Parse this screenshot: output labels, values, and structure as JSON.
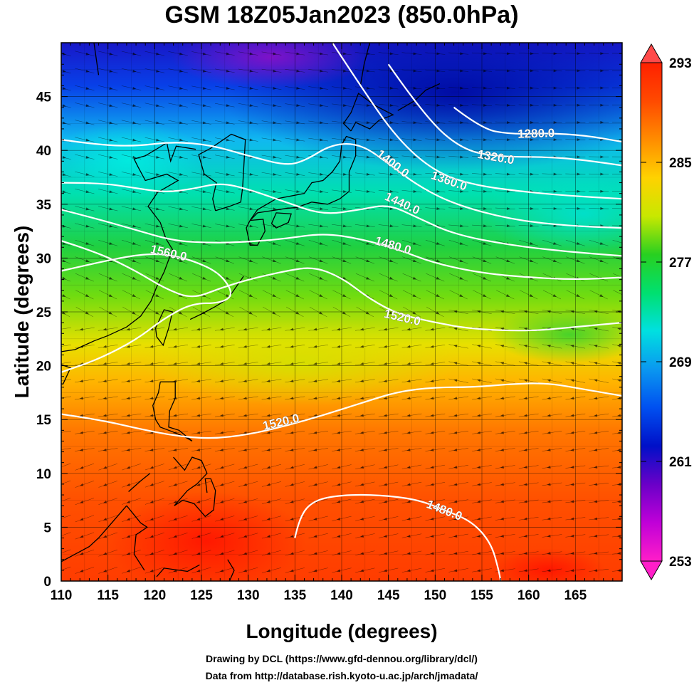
{
  "title": "GSM 18Z05Jan2023 (850.0hPa)",
  "xlabel": "Longitude (degrees)",
  "ylabel": "Latitude  (degrees)",
  "x_ticks": [
    "110",
    "115",
    "120",
    "125",
    "130",
    "135",
    "140",
    "145",
    "150",
    "155",
    "160",
    "165"
  ],
  "y_ticks": [
    "0",
    "5",
    "10",
    "15",
    "20",
    "25",
    "30",
    "35",
    "40",
    "45"
  ],
  "colorbar": {
    "ticks": [
      "253",
      "261",
      "269",
      "277",
      "285",
      "293"
    ],
    "colors": [
      "#ff1ec8",
      "#c000d8",
      "#6a00c8",
      "#0010c8",
      "#0050f0",
      "#0a98f0",
      "#00e0e0",
      "#00e070",
      "#28d020",
      "#c8e800",
      "#ffd200",
      "#ff8c00",
      "#ff4a00",
      "#ff2000"
    ]
  },
  "contour_labels": [
    "1280.0",
    "1320.0",
    "1360.0",
    "1400.0",
    "1440.0",
    "1480.0",
    "1520.0",
    "1560.0",
    "1520.0",
    "1480.0"
  ],
  "credits": {
    "line1": "Drawing by DCL (https://www.gfd-dennou.org/library/dcl/)",
    "line2": "Data from http://database.rish.kyoto-u.ac.jp/arch/jmadata/"
  },
  "chart_data": {
    "type": "heatmap",
    "title": "GSM 18Z05Jan2023 (850.0hPa)",
    "xlabel": "Longitude (degrees)",
    "ylabel": "Latitude  (degrees)",
    "xlim": [
      110,
      170
    ],
    "ylim": [
      0,
      50
    ],
    "x_ticks": [
      110,
      115,
      120,
      125,
      130,
      135,
      140,
      145,
      150,
      155,
      160,
      165
    ],
    "y_ticks": [
      0,
      5,
      10,
      15,
      20,
      25,
      30,
      35,
      40,
      45
    ],
    "colorbar_range": [
      253,
      293
    ],
    "colorbar_ticks": [
      253,
      261,
      269,
      277,
      285,
      293
    ],
    "grid": true,
    "contours": [
      {
        "level": "1280.0",
        "label_lon": 160.8,
        "label_lat": 41.6,
        "points": [
          [
            152,
            44
          ],
          [
            155,
            42
          ],
          [
            158,
            41.5
          ],
          [
            162,
            41.6
          ],
          [
            166,
            41.4
          ],
          [
            170,
            40.8
          ]
        ]
      },
      {
        "level": "1320.0",
        "label_lon": 156.5,
        "label_lat": 39.4,
        "points": [
          [
            145,
            48
          ],
          [
            149,
            43
          ],
          [
            153,
            40
          ],
          [
            157,
            39.4
          ],
          [
            162,
            39.4
          ],
          [
            166,
            39.1
          ],
          [
            170,
            38.6
          ]
        ]
      },
      {
        "level": "1360.0",
        "label_lon": 151.5,
        "label_lat": 37.2,
        "points": [
          [
            139,
            50
          ],
          [
            142,
            46
          ],
          [
            146,
            41
          ],
          [
            150,
            38
          ],
          [
            154,
            36.8
          ],
          [
            159,
            36.2
          ],
          [
            164,
            35.8
          ],
          [
            170,
            35.5
          ]
        ]
      },
      {
        "level": "1400.0",
        "label_lon": 145.5,
        "label_lat": 38.8,
        "points": [
          [
            110,
            41
          ],
          [
            114,
            40.5
          ],
          [
            118,
            40.4
          ],
          [
            122,
            40.8
          ],
          [
            126,
            40.5
          ],
          [
            130,
            39.5
          ],
          [
            134,
            38.6
          ],
          [
            136,
            39
          ],
          [
            139,
            40.6
          ],
          [
            142,
            40.6
          ],
          [
            145,
            38.8
          ],
          [
            148,
            36.8
          ],
          [
            152,
            35
          ],
          [
            158,
            33.6
          ],
          [
            164,
            33
          ],
          [
            170,
            32.8
          ]
        ]
      },
      {
        "level": "1440.0",
        "label_lon": 146.5,
        "label_lat": 35.1,
        "points": [
          [
            110,
            37
          ],
          [
            114,
            37
          ],
          [
            118,
            36.5
          ],
          [
            121,
            36.1
          ],
          [
            124,
            36.4
          ],
          [
            127,
            37
          ],
          [
            130,
            36.4
          ],
          [
            134,
            35.2
          ],
          [
            138,
            34
          ],
          [
            142,
            34.5
          ],
          [
            145,
            35
          ],
          [
            148,
            33.8
          ],
          [
            152,
            32.2
          ],
          [
            158,
            31.2
          ],
          [
            164,
            30.6
          ],
          [
            170,
            30.2
          ]
        ]
      },
      {
        "level": "1480.0",
        "label_lon": 145.5,
        "label_lat": 31.2,
        "points": [
          [
            110,
            34.5
          ],
          [
            114,
            33.6
          ],
          [
            118,
            32.6
          ],
          [
            122,
            31.6
          ],
          [
            126,
            31.4
          ],
          [
            130,
            31.5
          ],
          [
            134,
            31.8
          ],
          [
            138,
            32.3
          ],
          [
            142,
            31.8
          ],
          [
            146,
            30.8
          ],
          [
            150,
            29.5
          ],
          [
            155,
            28.6
          ],
          [
            160,
            28.2
          ],
          [
            165,
            28
          ],
          [
            170,
            28.2
          ]
        ]
      },
      {
        "level": "1520.0",
        "label_lon": 146.5,
        "label_lat": 24.5,
        "points": [
          [
            110,
            31.6
          ],
          [
            114,
            30.5
          ],
          [
            118,
            28.8
          ],
          [
            121,
            27.2
          ],
          [
            124,
            26.2
          ],
          [
            127,
            27.2
          ],
          [
            130,
            28
          ],
          [
            134,
            28.8
          ],
          [
            137,
            29.2
          ],
          [
            140,
            28.2
          ],
          [
            143,
            26.2
          ],
          [
            146,
            24.8
          ],
          [
            150,
            24
          ],
          [
            154,
            23.4
          ],
          [
            160,
            23.2
          ],
          [
            165,
            23.6
          ],
          [
            170,
            24
          ]
        ]
      },
      {
        "level": "1560.0",
        "label_lon": 121.5,
        "label_lat": 30.5,
        "points": [
          [
            110,
            28.8
          ],
          [
            114,
            29.6
          ],
          [
            118,
            30.3
          ],
          [
            121,
            30.4
          ],
          [
            124,
            29.8
          ],
          [
            127,
            28.6
          ],
          [
            128.5,
            26.6
          ],
          [
            127,
            25.8
          ],
          [
            124,
            25.8
          ],
          [
            121,
            24.4
          ],
          [
            118,
            22.4
          ],
          [
            114,
            20.6
          ],
          [
            110,
            19.4
          ]
        ]
      },
      {
        "level": "1520.0",
        "label_lon": 133.5,
        "label_lat": 14.8,
        "points": [
          [
            110,
            15.5
          ],
          [
            114,
            15
          ],
          [
            118,
            14.2
          ],
          [
            122,
            13.5
          ],
          [
            126,
            13.2
          ],
          [
            130,
            13.6
          ],
          [
            134,
            14.4
          ],
          [
            138,
            15.4
          ],
          [
            142,
            16.5
          ],
          [
            146,
            17.6
          ],
          [
            150,
            18
          ],
          [
            154,
            18
          ],
          [
            158,
            18.3
          ],
          [
            162,
            18.4
          ],
          [
            166,
            17.8
          ],
          [
            170,
            17.2
          ]
        ]
      },
      {
        "level": "1480.0",
        "label_lon": 151,
        "label_lat": 6.6,
        "points": [
          [
            135,
            4
          ],
          [
            135.5,
            6
          ],
          [
            137,
            7.5
          ],
          [
            140,
            8
          ],
          [
            144,
            8
          ],
          [
            148,
            7.6
          ],
          [
            151,
            6.6
          ],
          [
            154,
            5.5
          ],
          [
            156,
            3.5
          ],
          [
            156.8,
            1
          ],
          [
            157,
            0
          ]
        ]
      }
    ],
    "annotations": [
      "Drawing by DCL (https://www.gfd-dennou.org/library/dcl/)",
      "Data from http://database.rish.kyoto-u.ac.jp/arch/jmadata/"
    ]
  }
}
